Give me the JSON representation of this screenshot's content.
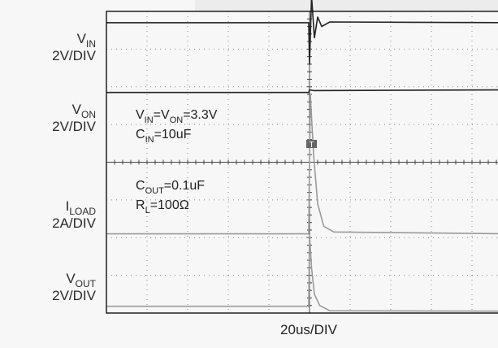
{
  "channels": [
    {
      "name": "V",
      "sub": "IN",
      "scale": "2V/DIV"
    },
    {
      "name": "V",
      "sub": "ON",
      "scale": "2V/DIV"
    },
    {
      "name": "I",
      "sub": "LOAD",
      "scale": "2A/DIV"
    },
    {
      "name": "V",
      "sub": "OUT",
      "scale": "2V/DIV"
    }
  ],
  "annotations": {
    "line1": {
      "a": "V",
      "a_sub": "IN",
      "eq": "=V",
      "b_sub": "ON",
      "rest": "=3.3V"
    },
    "line2": {
      "a": "C",
      "a_sub": "IN",
      "rest": "=10uF"
    },
    "line3": {
      "a": "C",
      "a_sub": "OUT",
      "rest": "=0.1uF"
    },
    "line4": {
      "a": "R",
      "a_sub": "L",
      "rest": "=100Ω"
    }
  },
  "trigger_marker": "T",
  "chart_data": {
    "type": "line",
    "title": "",
    "xlabel": "20us/DIV",
    "ylabel": "",
    "x_divisions": 10,
    "y_divisions": 8,
    "trigger_division": 5,
    "grid": true,
    "colors": {
      "dark_trace": "#222222",
      "light_trace": "#9a9a9a",
      "grid": "#888888",
      "frame": "#111111"
    },
    "series": [
      {
        "name": "VIN",
        "scale": "2V/DIV",
        "color": "#222222",
        "points": [
          [
            0,
            7.7
          ],
          [
            4.98,
            7.7
          ],
          [
            5.0,
            6.6
          ],
          [
            5.05,
            8.4
          ],
          [
            5.12,
            7.3
          ],
          [
            5.2,
            7.85
          ],
          [
            5.3,
            7.6
          ],
          [
            5.5,
            7.72
          ],
          [
            10,
            7.7
          ]
        ]
      },
      {
        "name": "VON",
        "scale": "2V/DIV",
        "color": "#222222",
        "points": [
          [
            0,
            5.85
          ],
          [
            4.98,
            5.85
          ],
          [
            5.0,
            5.92
          ],
          [
            5.1,
            5.9
          ],
          [
            10,
            5.92
          ]
        ]
      },
      {
        "name": "ILOAD",
        "scale": "2A/DIV",
        "color": "#9a9a9a",
        "points": [
          [
            0,
            2.1
          ],
          [
            4.98,
            2.1
          ],
          [
            5.02,
            5.8
          ],
          [
            5.1,
            4.2
          ],
          [
            5.2,
            2.9
          ],
          [
            5.35,
            2.3
          ],
          [
            5.6,
            2.15
          ],
          [
            10,
            2.1
          ]
        ]
      },
      {
        "name": "VOUT",
        "scale": "2V/DIV",
        "color": "#9a9a9a",
        "points": [
          [
            0,
            0.18
          ],
          [
            4.98,
            0.18
          ],
          [
            5.0,
            2.05
          ],
          [
            5.05,
            1.2
          ],
          [
            5.12,
            0.5
          ],
          [
            5.25,
            0.2
          ],
          [
            5.5,
            0.06
          ],
          [
            10,
            0.05
          ]
        ]
      }
    ]
  }
}
